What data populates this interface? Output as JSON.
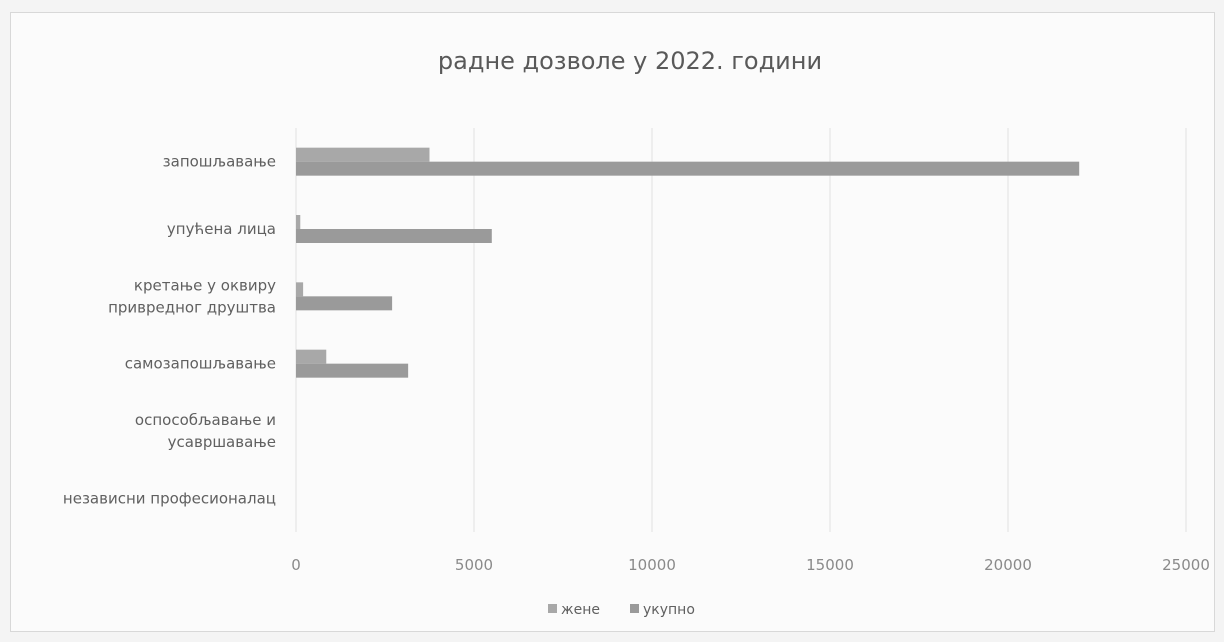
{
  "chart_data": {
    "type": "bar",
    "orientation": "horizontal",
    "title": "радне дозволе у 2022. години",
    "categories": [
      [
        "запошљавање"
      ],
      [
        "упућена лица"
      ],
      [
        "кретање у оквиру",
        "привредног друштва"
      ],
      [
        "самозапошљавање"
      ],
      [
        "оспособљавање и",
        "усавршавање"
      ],
      [
        "независни професионалац"
      ]
    ],
    "series": [
      {
        "name": "жене",
        "values": [
          3750,
          120,
          200,
          850,
          0,
          0
        ]
      },
      {
        "name": "укупно",
        "values": [
          22000,
          5500,
          2700,
          3150,
          0,
          0
        ]
      }
    ],
    "xlim": [
      0,
      25000
    ],
    "xticks": [
      0,
      5000,
      10000,
      15000,
      20000,
      25000
    ],
    "grid": true,
    "legend_position": "bottom",
    "colors": {
      "жене": "#a8a8a8",
      "укупно": "#9a9a9a"
    }
  }
}
